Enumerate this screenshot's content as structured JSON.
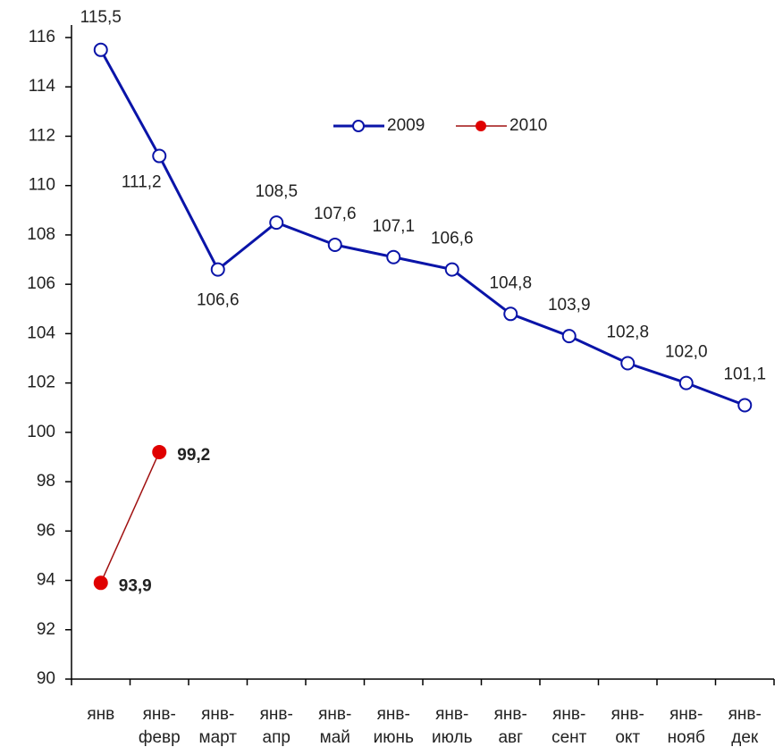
{
  "chart_data": {
    "type": "line",
    "categories": [
      "янв",
      "янв-февр",
      "янв-март",
      "янв-апр",
      "янв-май",
      "янв-июнь",
      "янв-июль",
      "янв-авг",
      "янв-сент",
      "янв-окт",
      "янв-нояб",
      "янв-дек"
    ],
    "series": [
      {
        "name": "2009",
        "color": "#0a14a8",
        "marker": "hollow",
        "values": [
          115.5,
          111.2,
          106.6,
          108.5,
          107.6,
          107.1,
          106.6,
          104.8,
          103.9,
          102.8,
          102.0,
          101.1
        ],
        "value_labels": [
          "115,5",
          "111,2",
          "106,6",
          "108,5",
          "107,6",
          "107,1",
          "106,6",
          "104,8",
          "103,9",
          "102,8",
          "102,0",
          "101,1"
        ]
      },
      {
        "name": "2010",
        "color": "#e00000",
        "marker": "filled",
        "values": [
          93.9,
          99.2,
          null,
          null,
          null,
          null,
          null,
          null,
          null,
          null,
          null,
          null
        ],
        "value_labels": [
          "93,9",
          "99,2",
          null,
          null,
          null,
          null,
          null,
          null,
          null,
          null,
          null,
          null
        ]
      }
    ],
    "ylim": [
      90,
      116
    ],
    "yticks": [
      90,
      92,
      94,
      96,
      98,
      100,
      102,
      104,
      106,
      108,
      110,
      112,
      114,
      116
    ],
    "legend": "upper center"
  }
}
